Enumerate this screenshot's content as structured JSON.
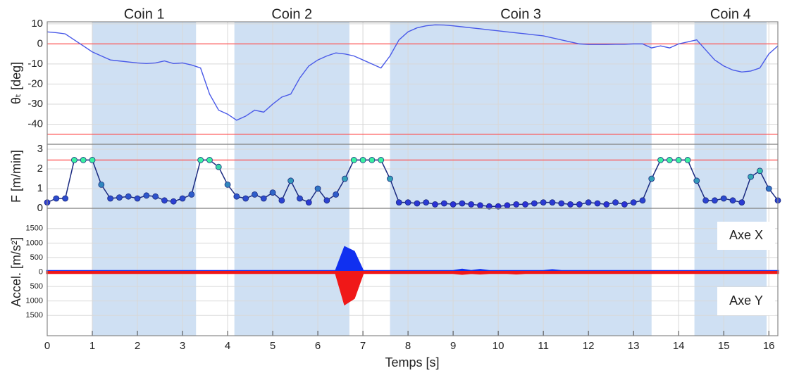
{
  "chart_data": {
    "type": "line",
    "xlabel": "Temps [s]",
    "xlim": [
      0,
      16.2
    ],
    "xticks": [
      0,
      1,
      2,
      3,
      4,
      5,
      6,
      7,
      8,
      9,
      10,
      11,
      12,
      13,
      14,
      15,
      16
    ],
    "grid": true,
    "region_color": "#cfe0f3",
    "regions": [
      {
        "label": "Coin 1",
        "start": 1.0,
        "end": 3.3
      },
      {
        "label": "Coin 2",
        "start": 4.15,
        "end": 6.7
      },
      {
        "label": "Coin 3",
        "start": 7.6,
        "end": 13.4
      },
      {
        "label": "Coin 4",
        "start": 14.35,
        "end": 15.95
      }
    ],
    "x": [
      0,
      0.2,
      0.4,
      0.6,
      0.8,
      1,
      1.2,
      1.4,
      1.6,
      1.8,
      2,
      2.2,
      2.4,
      2.6,
      2.8,
      3,
      3.2,
      3.4,
      3.6,
      3.8,
      4,
      4.2,
      4.4,
      4.6,
      4.8,
      5,
      5.2,
      5.4,
      5.6,
      5.8,
      6,
      6.2,
      6.4,
      6.6,
      6.8,
      7,
      7.2,
      7.4,
      7.6,
      7.8,
      8,
      8.2,
      8.4,
      8.6,
      8.8,
      9,
      9.2,
      9.4,
      9.6,
      9.8,
      10,
      10.2,
      10.4,
      10.6,
      10.8,
      11,
      11.2,
      11.4,
      11.6,
      11.8,
      12,
      12.2,
      12.4,
      12.6,
      12.8,
      13,
      13.2,
      13.4,
      13.6,
      13.8,
      14,
      14.2,
      14.4,
      14.6,
      14.8,
      15,
      15.2,
      15.4,
      15.6,
      15.8,
      16,
      16.2
    ],
    "panels": [
      {
        "type": "line",
        "ylabel": "θₜ [deg]",
        "ylim": [
          -50,
          11
        ],
        "yticks": [
          10,
          0,
          -10,
          -20,
          -30,
          -40
        ],
        "hlines": [
          0,
          -45
        ],
        "hline_color": "#ff5050",
        "series": [
          {
            "color": "#4a5ae8",
            "values": [
              6,
              5.6,
              5,
              2,
              -1,
              -4,
              -6,
              -8,
              -8.5,
              -9,
              -9.5,
              -9.8,
              -9.5,
              -8.5,
              -9.8,
              -9.5,
              -10.5,
              -12,
              -25,
              -33,
              -35,
              -38,
              -36,
              -33,
              -34,
              -30,
              -26.5,
              -25,
              -17,
              -11,
              -8,
              -6,
              -4.5,
              -5,
              -6,
              -8,
              -10,
              -12,
              -6,
              2,
              6,
              8,
              9,
              9.5,
              9.4,
              9,
              8.5,
              8,
              7.5,
              7,
              6.5,
              6,
              5.5,
              5,
              4.5,
              4,
              3,
              2,
              1,
              0,
              -0.3,
              -0.3,
              -0.3,
              -0.2,
              -0.2,
              0,
              0,
              -2,
              -1,
              -2,
              0,
              1,
              2,
              -3,
              -8,
              -11,
              -13,
              -14,
              -13.5,
              -12,
              -5,
              -1
            ]
          }
        ]
      },
      {
        "type": "markers",
        "ylabel": "F [m/min]",
        "ylim": [
          0,
          3.25
        ],
        "yticks": [
          0,
          1,
          2,
          3
        ],
        "hlines": [
          2.45
        ],
        "hline_color": "#ff5050",
        "colormap": [
          "#2a2ad8",
          "#3af0a0"
        ],
        "series": [
          {
            "color": "#1a2a80",
            "values": [
              0.3,
              0.5,
              0.5,
              2.45,
              2.45,
              2.45,
              1.2,
              0.5,
              0.55,
              0.6,
              0.5,
              0.65,
              0.6,
              0.4,
              0.35,
              0.5,
              0.7,
              2.45,
              2.45,
              2.1,
              1.2,
              0.6,
              0.5,
              0.7,
              0.5,
              0.8,
              0.4,
              1.4,
              0.5,
              0.3,
              1.0,
              0.4,
              0.7,
              1.5,
              2.45,
              2.45,
              2.45,
              2.45,
              1.5,
              0.3,
              0.3,
              0.25,
              0.3,
              0.2,
              0.25,
              0.2,
              0.25,
              0.2,
              0.15,
              0.1,
              0.1,
              0.15,
              0.2,
              0.2,
              0.25,
              0.3,
              0.3,
              0.25,
              0.2,
              0.2,
              0.3,
              0.25,
              0.2,
              0.3,
              0.2,
              0.3,
              0.4,
              1.5,
              2.45,
              2.45,
              2.45,
              2.45,
              1.4,
              0.4,
              0.4,
              0.5,
              0.4,
              0.3,
              1.6,
              1.9,
              1.0,
              0.4
            ]
          }
        ]
      },
      {
        "type": "area",
        "ylabel": "Accel. [m/s²]",
        "ylim": [
          -2200,
          2200
        ],
        "yticks": [
          1500,
          1000,
          500,
          0,
          {
            "value": -500,
            "label": "500"
          },
          {
            "value": -1000,
            "label": "1000"
          },
          {
            "value": -1500,
            "label": "1500"
          }
        ],
        "annotations": [
          "Axe X",
          "Axe Y"
        ],
        "series": [
          {
            "name": "Axe X",
            "color": "#1030f0",
            "values": [
              30,
              30,
              30,
              30,
              30,
              30,
              30,
              30,
              30,
              30,
              30,
              30,
              30,
              30,
              30,
              30,
              30,
              30,
              30,
              30,
              30,
              30,
              30,
              30,
              30,
              30,
              30,
              30,
              30,
              30,
              30,
              30,
              30,
              850,
              700,
              30,
              30,
              30,
              30,
              30,
              30,
              30,
              30,
              30,
              30,
              30,
              80,
              30,
              70,
              30,
              30,
              30,
              30,
              30,
              30,
              30,
              60,
              30,
              30,
              30,
              30,
              30,
              30,
              30,
              30,
              30,
              30,
              30,
              30,
              30,
              30,
              30,
              30,
              30,
              30,
              30,
              30,
              30,
              30,
              30,
              30,
              30
            ]
          },
          {
            "name": "Axe Y",
            "color": "#f01818",
            "values": [
              -30,
              -30,
              -30,
              -30,
              -30,
              -30,
              -30,
              -30,
              -30,
              -30,
              -30,
              -30,
              -30,
              -30,
              -30,
              -30,
              -30,
              -30,
              -30,
              -30,
              -30,
              -30,
              -30,
              -30,
              -30,
              -30,
              -30,
              -30,
              -30,
              -30,
              -30,
              -30,
              -30,
              -1100,
              -900,
              -30,
              -30,
              -30,
              -30,
              -30,
              -30,
              -30,
              -30,
              -30,
              -30,
              -30,
              -60,
              -30,
              -50,
              -30,
              -30,
              -30,
              -50,
              -30,
              -30,
              -30,
              -30,
              -30,
              -30,
              -30,
              -30,
              -30,
              -30,
              -30,
              -30,
              -30,
              -30,
              -30,
              -30,
              -30,
              -30,
              -30,
              -30,
              -30,
              -30,
              -30,
              -30,
              -30,
              -30,
              -30,
              -30,
              -30
            ]
          }
        ]
      }
    ]
  }
}
